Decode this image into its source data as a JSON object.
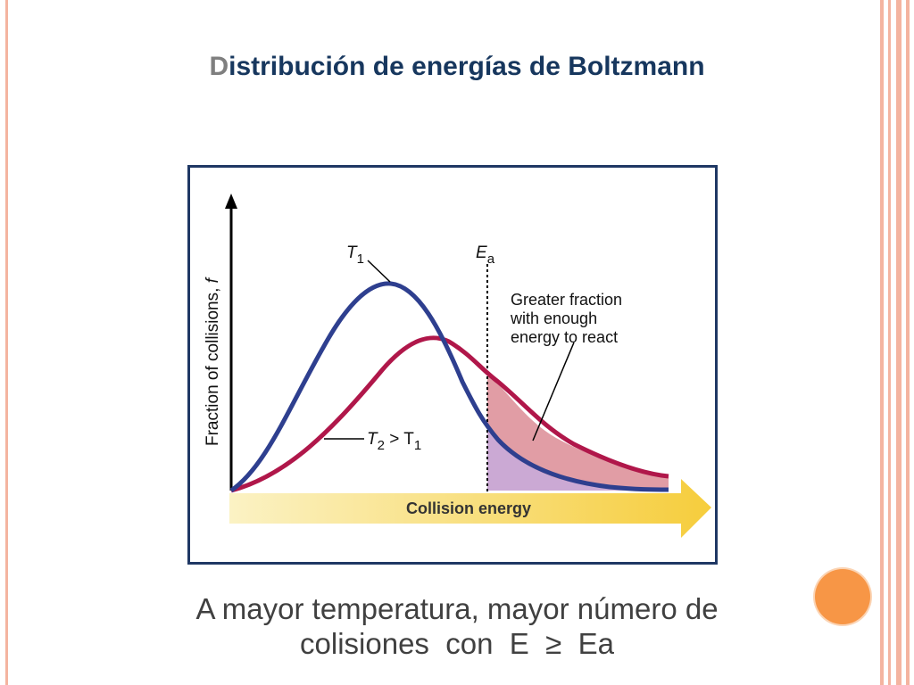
{
  "slide": {
    "title_first": "D",
    "title_rest": "istribución de energías de Boltzmann",
    "caption_line1": "A mayor temperatura, mayor número de",
    "caption_line2": "colisiones  con  E  ≥  Ea"
  },
  "diagram": {
    "y_axis_label": "Fraction of collisions, ",
    "y_axis_var": "f",
    "x_axis_label": "Collision energy",
    "curve_t1_label": "T",
    "curve_t1_sub": "1",
    "curve_t2_label_a": "T",
    "curve_t2_sub_a": "2",
    "curve_t2_label_b": " > T",
    "curve_t2_sub_b": "1",
    "ea_label": "E",
    "ea_sub": "a",
    "note_line1": "Greater fraction",
    "note_line2": "with enough",
    "note_line3": "energy to react"
  },
  "colors": {
    "curve_t1": "#2e3f8f",
    "curve_t2": "#b0174a",
    "shade_t2": "#d9848f",
    "shade_t1": "#c9aad6",
    "arrow": "#f6d04d",
    "accent_circle": "#f79646"
  }
}
